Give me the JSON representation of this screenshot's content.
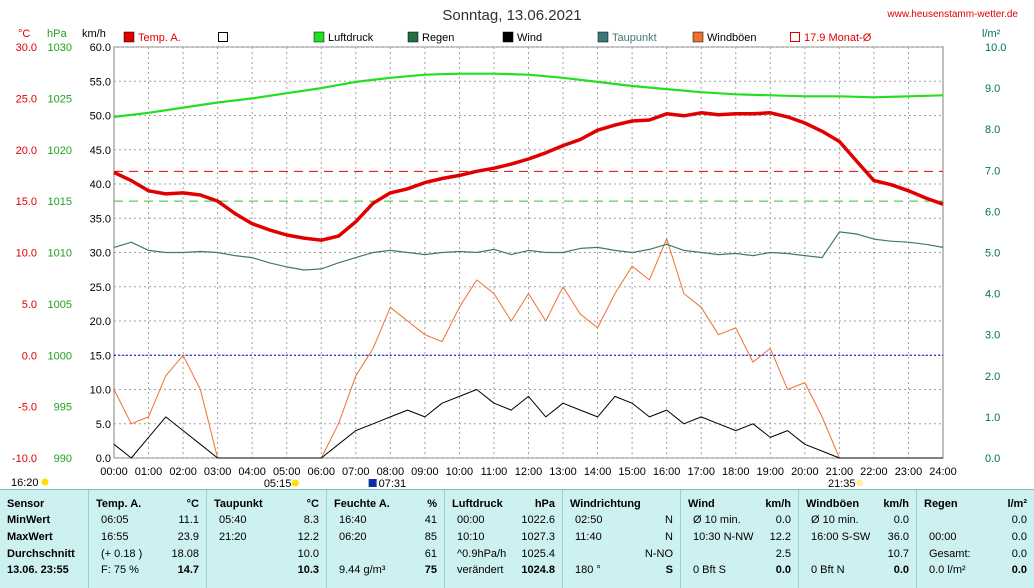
{
  "chart_data": {
    "type": "line",
    "title": "Sonntag, 13.06.2021",
    "source": "www.heusenstamm-wetter.de",
    "x_labels": [
      "00:00",
      "01:00",
      "02:00",
      "03:00",
      "04:00",
      "05:00",
      "06:00",
      "07:00",
      "08:00",
      "09:00",
      "10:00",
      "11:00",
      "12:00",
      "13:00",
      "14:00",
      "15:00",
      "16:00",
      "17:00",
      "18:00",
      "19:00",
      "20:00",
      "21:00",
      "22:00",
      "23:00",
      "24:00"
    ],
    "xlim": [
      0,
      24
    ],
    "axes": {
      "temp": {
        "label": "°C",
        "ylim": [
          -10,
          30
        ],
        "ticks": [
          "-10.0",
          "-5.0",
          "0.0",
          "5.0",
          "10.0",
          "15.0",
          "20.0",
          "25.0",
          "30.0"
        ],
        "color": "#e00000"
      },
      "pressure": {
        "label": "hPa",
        "ylim": [
          990,
          1030
        ],
        "ticks": [
          "990",
          "995",
          "1000",
          "1005",
          "1010",
          "1015",
          "1020",
          "1025",
          "1030"
        ],
        "color": "#20a020"
      },
      "wind": {
        "label": "km/h",
        "ylim": [
          0,
          60
        ],
        "ticks": [
          "0.0",
          "5.0",
          "10.0",
          "15.0",
          "20.0",
          "25.0",
          "30.0",
          "35.0",
          "40.0",
          "45.0",
          "50.0",
          "55.0",
          "60.0"
        ],
        "color": "#000000"
      },
      "rain": {
        "label": "l/m²",
        "ylim": [
          0,
          10
        ],
        "ticks": [
          "0.0",
          "1.0",
          "2.0",
          "3.0",
          "4.0",
          "5.0",
          "6.0",
          "7.0",
          "8.0",
          "9.0",
          "10.0"
        ],
        "color": "#007060"
      }
    },
    "legend": [
      {
        "name": "Temp. A.",
        "color": "#e00000",
        "style": "filled"
      },
      {
        "name": "",
        "color": "#000000",
        "style": "open"
      },
      {
        "name": "Luftdruck",
        "color": "#20e020",
        "style": "filled"
      },
      {
        "name": "Regen",
        "color": "#207040",
        "style": "filled"
      },
      {
        "name": "Wind",
        "color": "#000000",
        "style": "filled"
      },
      {
        "name": "Taupunkt",
        "color": "#407878",
        "style": "filled"
      },
      {
        "name": "Windböen",
        "color": "#f07030",
        "style": "filled"
      },
      {
        "name": "17.9 Monat-Ø",
        "color": "#e00000",
        "style": "open"
      }
    ],
    "reference_lines": [
      {
        "axis": "temp",
        "value": 17.9,
        "color": "#e00000",
        "style": "dashed"
      },
      {
        "axis": "pressure",
        "value": 1015,
        "color": "#30c030",
        "style": "dashed"
      },
      {
        "axis": "temp",
        "value": 0,
        "color": "#0000e0",
        "style": "dotted"
      }
    ],
    "markers": {
      "sunrise": "05:15",
      "sunset": "21:35",
      "moon": "07:31",
      "start": "16:20"
    },
    "series": [
      {
        "name": "Temp. A.",
        "axis": "temp",
        "color": "#e00000",
        "x": [
          0,
          0.5,
          1,
          1.5,
          2,
          2.5,
          3,
          3.5,
          4,
          4.5,
          5,
          5.5,
          6,
          6.5,
          7,
          7.5,
          8,
          8.5,
          9,
          9.5,
          10,
          10.5,
          11,
          11.5,
          12,
          12.5,
          13,
          13.5,
          14,
          14.5,
          15,
          15.5,
          16,
          16.5,
          17,
          17.5,
          18,
          18.5,
          19,
          19.5,
          20,
          20.5,
          21,
          21.5,
          22,
          22.5,
          23,
          23.5,
          24
        ],
        "y": [
          17.8,
          17.0,
          16.0,
          15.7,
          15.8,
          15.6,
          15.0,
          13.8,
          12.8,
          12.2,
          11.7,
          11.4,
          11.2,
          11.6,
          13.0,
          14.8,
          15.8,
          16.2,
          16.8,
          17.2,
          17.5,
          17.9,
          18.2,
          18.6,
          19.1,
          19.7,
          20.4,
          21.0,
          21.9,
          22.4,
          22.8,
          22.9,
          23.5,
          23.3,
          23.6,
          23.4,
          23.5,
          23.5,
          23.6,
          23.2,
          22.6,
          21.8,
          20.8,
          18.9,
          17.0,
          16.6,
          16.0,
          15.3,
          14.7
        ]
      },
      {
        "name": "Taupunkt",
        "axis": "temp",
        "color": "#407878",
        "x": [
          0,
          0.5,
          1,
          1.5,
          2,
          2.5,
          3,
          3.5,
          4,
          4.5,
          5,
          5.5,
          6,
          6.5,
          7,
          7.5,
          8,
          8.5,
          9,
          9.5,
          10,
          10.5,
          11,
          11.5,
          12,
          12.5,
          13,
          13.5,
          14,
          14.5,
          15,
          15.5,
          16,
          16.5,
          17,
          17.5,
          18,
          18.5,
          19,
          19.5,
          20,
          20.5,
          21,
          21.5,
          22,
          22.5,
          23,
          23.5,
          24
        ],
        "y": [
          10.5,
          11.0,
          10.2,
          10.0,
          10.0,
          10.1,
          10.0,
          9.7,
          9.5,
          9.0,
          8.6,
          8.3,
          8.4,
          9.0,
          9.5,
          10.0,
          10.2,
          10.0,
          9.8,
          10.0,
          10.1,
          10.0,
          10.3,
          9.8,
          10.2,
          10.0,
          10.0,
          10.4,
          10.5,
          10.2,
          10.0,
          10.3,
          10.8,
          10.2,
          10.0,
          9.8,
          9.9,
          9.7,
          10.0,
          9.9,
          9.7,
          9.5,
          12.0,
          11.8,
          11.3,
          11.1,
          11.0,
          10.8,
          10.5
        ]
      },
      {
        "name": "Luftdruck",
        "axis": "pressure",
        "color": "#20e020",
        "x": [
          0,
          1,
          2,
          3,
          4,
          5,
          6,
          7,
          8,
          9,
          10,
          11,
          12,
          13,
          14,
          15,
          16,
          17,
          18,
          19,
          20,
          21,
          22,
          23,
          24
        ],
        "y": [
          1023.2,
          1023.6,
          1024.1,
          1024.6,
          1025.0,
          1025.5,
          1026.0,
          1026.6,
          1027.0,
          1027.3,
          1027.4,
          1027.4,
          1027.3,
          1027.0,
          1026.6,
          1026.2,
          1025.9,
          1025.6,
          1025.4,
          1025.3,
          1025.2,
          1025.2,
          1025.1,
          1025.2,
          1025.3
        ]
      },
      {
        "name": "Wind",
        "axis": "wind",
        "color": "#000000",
        "x": [
          0,
          0.5,
          1,
          1.5,
          2,
          2.5,
          3,
          3.5,
          4,
          4.5,
          5,
          5.5,
          6,
          6.5,
          7,
          7.5,
          8,
          8.5,
          9,
          9.5,
          10,
          10.5,
          11,
          11.5,
          12,
          12.5,
          13,
          13.5,
          14,
          14.5,
          15,
          15.5,
          16,
          16.5,
          17,
          17.5,
          18,
          18.5,
          19,
          19.5,
          20,
          20.5,
          21,
          21.5,
          22,
          22.5,
          23,
          23.5,
          24
        ],
        "y": [
          2,
          0,
          3,
          6,
          4,
          2,
          0,
          0,
          0,
          0,
          0,
          0,
          0,
          2,
          4,
          5,
          6,
          7,
          6,
          8,
          9,
          10,
          8,
          7,
          9,
          6,
          8,
          7,
          6,
          9,
          8,
          6,
          7,
          5,
          6,
          5,
          4,
          5,
          3,
          4,
          2,
          1,
          0,
          0,
          0,
          0,
          0,
          0,
          0
        ]
      },
      {
        "name": "Windböen",
        "axis": "wind",
        "color": "#f07030",
        "x": [
          0,
          0.5,
          1,
          1.5,
          2,
          2.5,
          3,
          3.5,
          4,
          4.5,
          5,
          5.5,
          6,
          6.5,
          7,
          7.5,
          8,
          8.5,
          9,
          9.5,
          10,
          10.5,
          11,
          11.5,
          12,
          12.5,
          13,
          13.5,
          14,
          14.5,
          15,
          15.5,
          16,
          16.5,
          17,
          17.5,
          18,
          18.5,
          19,
          19.5,
          20,
          20.5,
          21,
          21.5,
          22,
          22.5,
          23,
          23.5,
          24
        ],
        "y": [
          10,
          5,
          6,
          12,
          15,
          10,
          0,
          0,
          0,
          0,
          0,
          0,
          0,
          5,
          12,
          16,
          22,
          20,
          18,
          17,
          22,
          26,
          24,
          20,
          24,
          20,
          25,
          21,
          19,
          24,
          28,
          26,
          32,
          24,
          22,
          18,
          19,
          14,
          16,
          10,
          11,
          6,
          0,
          0,
          0,
          0,
          0,
          0,
          0
        ]
      }
    ]
  },
  "table": {
    "columns": [
      {
        "title": "Sensor",
        "unit": "",
        "rows": [
          "MinWert",
          "MaxWert",
          "Durchschnitt",
          "13.06. 23:55"
        ]
      },
      {
        "title": "Temp. A.",
        "unit": "°C",
        "rows": [
          [
            "06:05",
            "11.1"
          ],
          [
            "16:55",
            "23.9"
          ],
          [
            "(+ 0.18 )",
            "18.08"
          ],
          [
            "F: 75 %",
            "14.7"
          ]
        ]
      },
      {
        "title": "Taupunkt",
        "unit": "°C",
        "rows": [
          [
            "05:40",
            "8.3"
          ],
          [
            "21:20",
            "12.2"
          ],
          [
            "",
            "10.0"
          ],
          [
            "",
            "10.3"
          ]
        ]
      },
      {
        "title": "Feuchte A.",
        "unit": "%",
        "rows": [
          [
            "16:40",
            "41"
          ],
          [
            "06:20",
            "85"
          ],
          [
            "",
            "61"
          ],
          [
            "9.44 g/m³",
            "75"
          ]
        ]
      },
      {
        "title": "Luftdruck",
        "unit": "hPa",
        "rows": [
          [
            "00:00",
            "1022.6"
          ],
          [
            "10:10",
            "1027.3"
          ],
          [
            "^0.9hPa/h",
            "1025.4"
          ],
          [
            "verändert",
            "1024.8"
          ]
        ]
      },
      {
        "title": "Windrichtung",
        "unit": "",
        "rows": [
          [
            "02:50",
            "N"
          ],
          [
            "11:40",
            "N"
          ],
          [
            "",
            "N-NO"
          ],
          [
            "180 °",
            "S"
          ]
        ]
      },
      {
        "title": "Wind",
        "unit": "km/h",
        "rows": [
          [
            "Ø 10 min.",
            "0.0"
          ],
          [
            "10:30   N-NW",
            "12.2"
          ],
          [
            "",
            "2.5"
          ],
          [
            "0 Bft S",
            "0.0"
          ]
        ]
      },
      {
        "title": "Windböen",
        "unit": "km/h",
        "rows": [
          [
            "Ø 10 min.",
            "0.0"
          ],
          [
            "16:00   S-SW",
            "36.0"
          ],
          [
            "",
            "10.7"
          ],
          [
            "0 Bft N",
            "0.0"
          ]
        ]
      },
      {
        "title": "Regen",
        "unit": "l/m²",
        "rows": [
          [
            "",
            "0.0"
          ],
          [
            "00:00",
            "0.0"
          ],
          [
            "Gesamt:",
            "0.0"
          ],
          [
            "0.0 l/m²",
            "0.0"
          ]
        ]
      }
    ]
  }
}
